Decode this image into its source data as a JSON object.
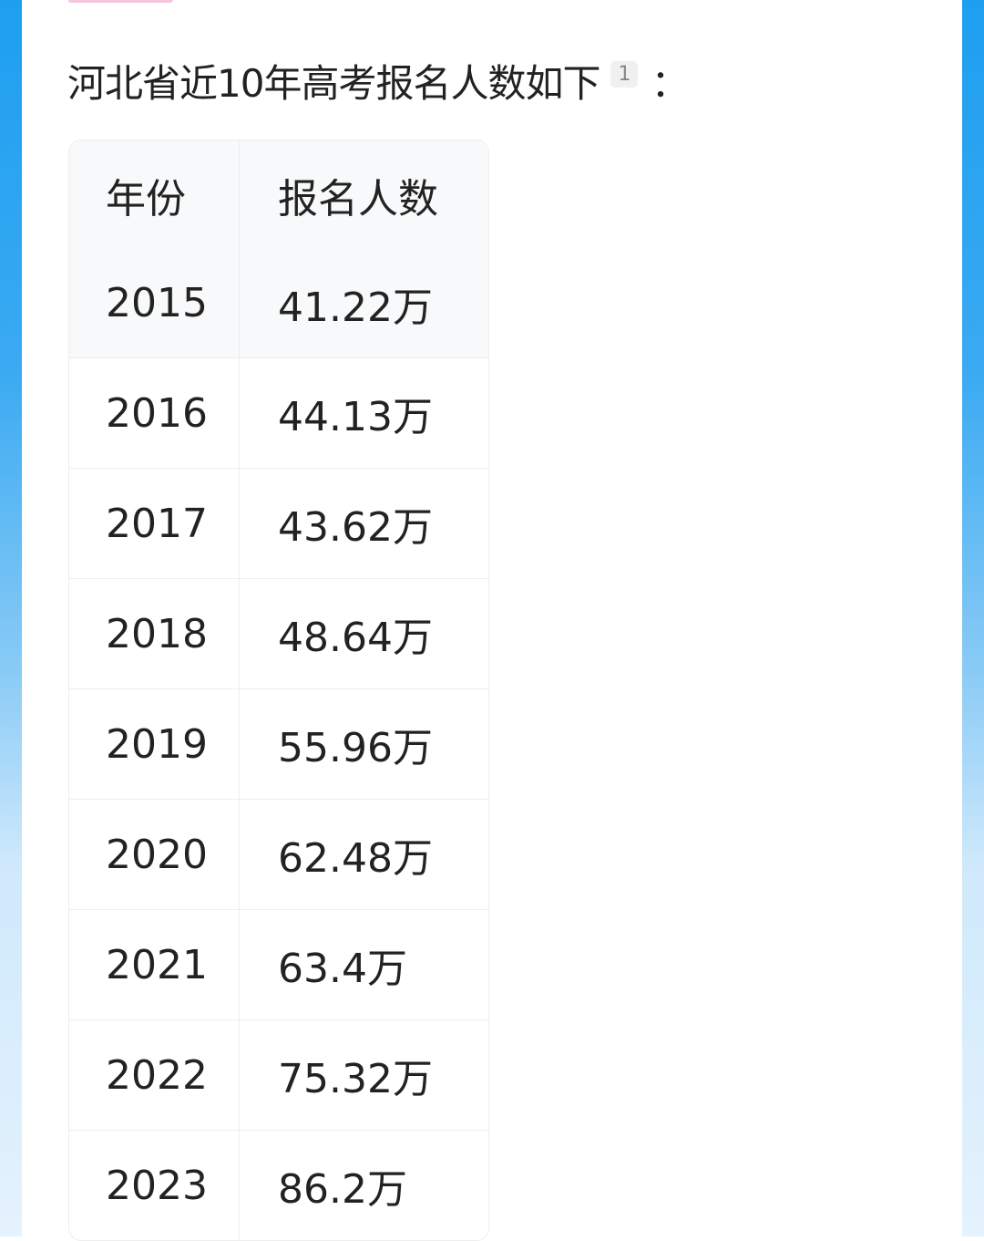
{
  "intro": {
    "text": "河北省近10年高考报名人数如下",
    "citation": "1",
    "colon": "："
  },
  "table": {
    "headers": [
      "年份",
      "报名人数"
    ],
    "rows": [
      [
        "2015",
        "41.22万"
      ],
      [
        "2016",
        "44.13万"
      ],
      [
        "2017",
        "43.62万"
      ],
      [
        "2018",
        "48.64万"
      ],
      [
        "2019",
        "55.96万"
      ],
      [
        "2020",
        "62.48万"
      ],
      [
        "2021",
        "63.4万"
      ],
      [
        "2022",
        "75.32万"
      ],
      [
        "2023",
        "86.2万"
      ]
    ]
  },
  "colors": {
    "frame": "#1e9ff0",
    "accent_bar": "#f5c6de"
  }
}
